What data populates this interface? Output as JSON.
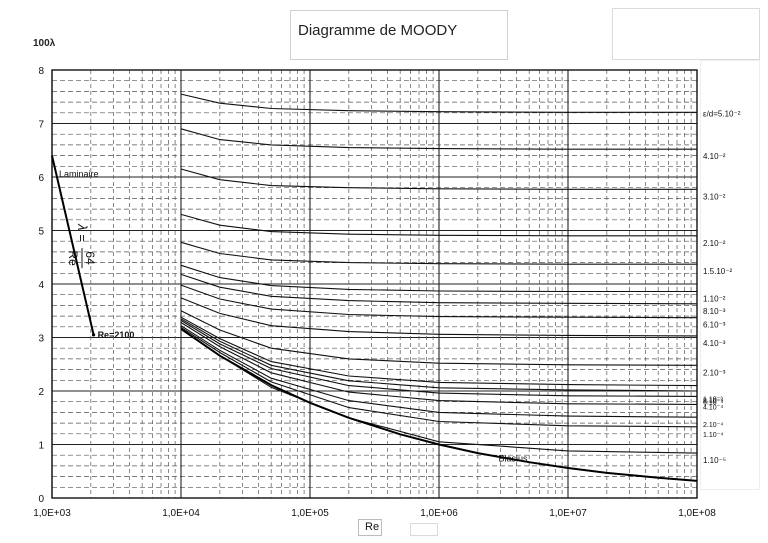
{
  "chart_data": {
    "type": "line",
    "title": "Diagramme de MOODY",
    "xlabel": "Re",
    "ylabel": "100λ",
    "x_scale": "log",
    "xlim": [
      1000,
      100000000
    ],
    "ylim": [
      0,
      8
    ],
    "x_ticks": [
      "1,0E+03",
      "1,0E+04",
      "1,0E+05",
      "1,0E+06",
      "1,0E+07",
      "1,0E+08"
    ],
    "y_ticks": [
      "0",
      "1",
      "2",
      "3",
      "4",
      "5",
      "6",
      "7",
      "8"
    ],
    "grid": true,
    "laminar": {
      "label": "Laminaire",
      "formula_lhs": "λ =",
      "formula_num": "64",
      "formula_den": "Re",
      "transition_label": "Re=2100",
      "points": [
        [
          1000,
          6.4
        ],
        [
          2100,
          3.05
        ]
      ]
    },
    "blasius": {
      "label": "Blasius",
      "points": [
        [
          10000,
          3.16
        ],
        [
          20000,
          2.66
        ],
        [
          50000,
          2.11
        ],
        [
          100000,
          1.78
        ],
        [
          200000,
          1.5
        ],
        [
          500000,
          1.19
        ],
        [
          1000000,
          1.0
        ],
        [
          2000000,
          0.84
        ],
        [
          5000000,
          0.67
        ],
        [
          10000000,
          0.56
        ],
        [
          20000000,
          0.47
        ],
        [
          50000000,
          0.38
        ],
        [
          100000000,
          0.32
        ]
      ]
    },
    "series": [
      {
        "name": "ε/d=5.10⁻²",
        "values": [
          7.55,
          7.38,
          7.28,
          7.24,
          7.22,
          7.21,
          7.21
        ]
      },
      {
        "name": "4.10⁻²",
        "values": [
          6.9,
          6.7,
          6.6,
          6.55,
          6.53,
          6.52,
          6.52
        ]
      },
      {
        "name": "3.10⁻²",
        "values": [
          6.15,
          5.95,
          5.84,
          5.8,
          5.78,
          5.77,
          5.77
        ]
      },
      {
        "name": "2.10⁻²",
        "values": [
          5.3,
          5.1,
          4.98,
          4.93,
          4.91,
          4.9,
          4.9
        ]
      },
      {
        "name": "1.5.10⁻²",
        "values": [
          4.78,
          4.57,
          4.45,
          4.4,
          4.38,
          4.37,
          4.37
        ]
      },
      {
        "name": "1.10⁻²",
        "values": [
          4.35,
          4.12,
          3.97,
          3.9,
          3.87,
          3.86,
          3.86
        ]
      },
      {
        "name": "8.10⁻³",
        "values": [
          4.18,
          3.94,
          3.77,
          3.69,
          3.65,
          3.64,
          3.63
        ]
      },
      {
        "name": "6.10⁻³",
        "values": [
          3.98,
          3.72,
          3.53,
          3.43,
          3.39,
          3.38,
          3.37
        ]
      },
      {
        "name": "4.10⁻³",
        "values": [
          3.74,
          3.45,
          3.22,
          3.11,
          3.06,
          3.04,
          3.03
        ]
      },
      {
        "name": "2.10⁻³",
        "values": [
          3.5,
          3.14,
          2.8,
          2.6,
          2.52,
          2.49,
          2.48
        ]
      },
      {
        "name": "1.10⁻³",
        "values": [
          3.38,
          2.98,
          2.55,
          2.28,
          2.16,
          2.12,
          2.1
        ]
      },
      {
        "name": "8.10⁻⁴",
        "values": [
          3.35,
          2.93,
          2.48,
          2.19,
          2.06,
          2.02,
          2.0
        ]
      },
      {
        "name": "6.10⁻⁴",
        "values": [
          3.32,
          2.88,
          2.42,
          2.1,
          1.96,
          1.91,
          1.9
        ]
      },
      {
        "name": "4.10⁻⁴",
        "values": [
          3.28,
          2.83,
          2.34,
          1.98,
          1.82,
          1.76,
          1.75
        ]
      },
      {
        "name": "2.10⁻⁴",
        "values": [
          3.22,
          2.76,
          2.24,
          1.82,
          1.6,
          1.53,
          1.51
        ]
      },
      {
        "name": "1.10⁻⁴",
        "values": [
          3.19,
          2.72,
          2.17,
          1.69,
          1.43,
          1.35,
          1.33
        ]
      },
      {
        "name": "1.10⁻⁵",
        "values": [
          3.16,
          2.66,
          2.07,
          1.5,
          1.05,
          0.88,
          0.84
        ]
      }
    ],
    "series_x": [
      10000,
      20000,
      50000,
      200000,
      1000000,
      10000000,
      100000000
    ]
  }
}
